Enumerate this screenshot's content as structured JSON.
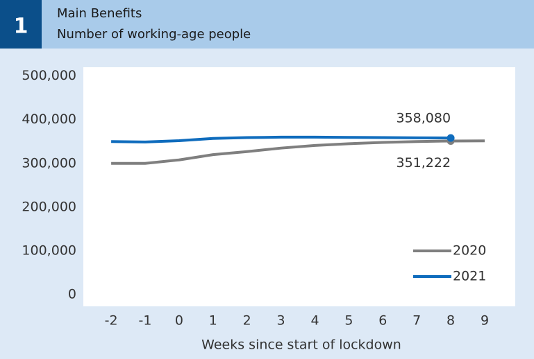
{
  "header": {
    "number": "1",
    "title": "Main Benefits",
    "subtitle": "Number of working-age people"
  },
  "chart_data": {
    "type": "line",
    "x": [
      -2,
      -1,
      0,
      1,
      2,
      3,
      4,
      5,
      6,
      7,
      8,
      9
    ],
    "series": [
      {
        "name": "2020",
        "color": "#7f7f7f",
        "values": [
          300000,
          300000,
          308000,
          320000,
          327000,
          335000,
          341000,
          345000,
          348000,
          350000,
          351222,
          351500
        ],
        "value_labels": [
          null,
          null,
          null,
          null,
          null,
          null,
          null,
          null,
          null,
          null,
          "351,222",
          null
        ]
      },
      {
        "name": "2021",
        "color": "#0f6cbd",
        "values": [
          350000,
          349000,
          352000,
          357000,
          359000,
          360000,
          360000,
          359500,
          359000,
          358500,
          358080,
          null
        ],
        "value_labels": [
          null,
          null,
          null,
          null,
          null,
          null,
          null,
          null,
          null,
          null,
          "358,080",
          null
        ]
      }
    ],
    "xlabel": "Weeks since start of lockdown",
    "xlim": [
      -2.82,
      9.9
    ],
    "xticks": [
      -2,
      -1,
      0,
      1,
      2,
      3,
      4,
      5,
      6,
      7,
      8,
      9
    ],
    "ylim": [
      -27000,
      520000
    ],
    "yticks": [
      0,
      {
        "value": 100000,
        "label": "100,000"
      },
      {
        "value": 200000,
        "label": "200,000"
      },
      {
        "value": 300000,
        "label": "300,000"
      },
      {
        "value": 400000,
        "label": "400,000"
      },
      {
        "value": 500000,
        "label": "500,000"
      }
    ],
    "grid": false,
    "legend": "lower right"
  }
}
